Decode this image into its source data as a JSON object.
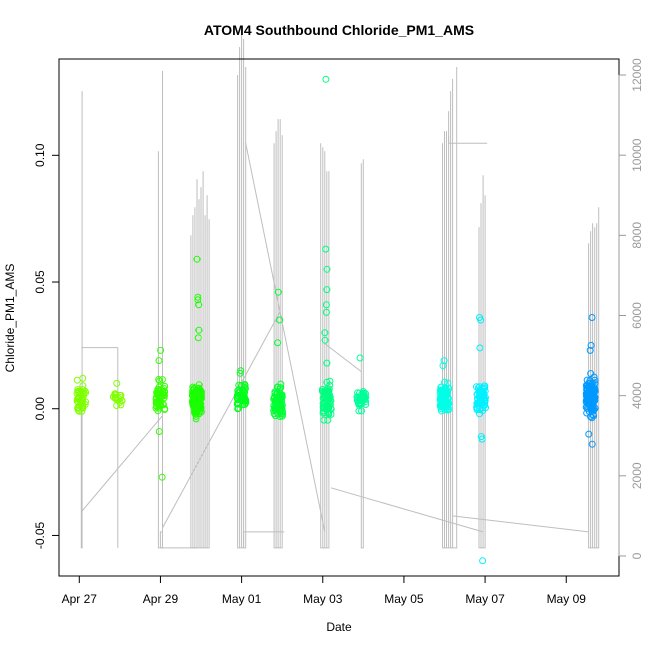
{
  "chart_data": {
    "type": "scatter",
    "title": "ATOM4 Southbound Chloride_PM1_AMS",
    "xlabel": "Date",
    "ylabel": "Chloride_PM1_AMS",
    "x_tick_labels": [
      "Apr 27",
      "Apr 29",
      "May 01",
      "May 03",
      "May 05",
      "May 07",
      "May 09"
    ],
    "x_tick_days": [
      0,
      2,
      4,
      6,
      8,
      10,
      12
    ],
    "x_range_days": [
      -0.5,
      13.3
    ],
    "y_ticks": [
      -0.05,
      0.0,
      0.05,
      0.1
    ],
    "y_tick_labels": [
      "-0.05",
      "0.00",
      "0.05",
      "0.10"
    ],
    "ylim": [
      -0.066,
      0.138
    ],
    "right_axis": {
      "ticks": [
        0,
        2000,
        4000,
        6000,
        8000,
        10000,
        12000
      ],
      "tick_labels": [
        "0",
        "2000",
        "4000",
        "6000",
        "8000",
        "10000",
        "12000"
      ],
      "range": [
        -500,
        12400
      ],
      "line_color": "#bebebe"
    },
    "grid": false,
    "legend": "none",
    "point_clusters": [
      {
        "day": 0.05,
        "color": "#7fff00",
        "center": 0.004,
        "spread": 0.005,
        "n": 45,
        "outliers": [
          0.012,
          -0.001
        ]
      },
      {
        "day": 0.95,
        "color": "#80ff00",
        "center": 0.004,
        "spread": 0.003,
        "n": 18,
        "outliers": [
          0.01
        ]
      },
      {
        "day": 2.0,
        "color": "#33ff00",
        "center": 0.005,
        "spread": 0.006,
        "n": 55,
        "outliers": [
          -0.027,
          0.023,
          0.019,
          -0.009
        ]
      },
      {
        "day": 2.9,
        "color": "#1aff00",
        "center": 0.003,
        "spread": 0.005,
        "n": 140,
        "outliers": [
          0.059,
          0.044,
          0.041,
          0.043,
          0.031,
          0.028,
          -0.004
        ]
      },
      {
        "day": 4.0,
        "color": "#00ff19",
        "center": 0.004,
        "spread": 0.004,
        "n": 45,
        "outliers": [
          0.015,
          0.014
        ]
      },
      {
        "day": 4.9,
        "color": "#00ff33",
        "center": 0.003,
        "spread": 0.005,
        "n": 80,
        "outliers": [
          0.046,
          0.035,
          0.026
        ]
      },
      {
        "day": 6.1,
        "color": "#00ff80",
        "center": 0.003,
        "spread": 0.006,
        "n": 70,
        "outliers": [
          0.13,
          0.063,
          0.055,
          0.047,
          0.041,
          0.038,
          0.03,
          0.027,
          0.018
        ]
      },
      {
        "day": 6.95,
        "color": "#00ff99",
        "center": 0.004,
        "spread": 0.004,
        "n": 45,
        "outliers": [
          0.02
        ]
      },
      {
        "day": 9.0,
        "color": "#00ffe6",
        "center": 0.004,
        "spread": 0.005,
        "n": 100,
        "outliers": [
          0.019,
          0.017
        ]
      },
      {
        "day": 9.9,
        "color": "#00f0ff",
        "center": 0.004,
        "spread": 0.006,
        "n": 70,
        "outliers": [
          0.036,
          0.035,
          0.024,
          -0.06,
          -0.012,
          -0.011
        ]
      },
      {
        "day": 12.6,
        "color": "#0099ff",
        "center": 0.004,
        "spread": 0.007,
        "n": 110,
        "outliers": [
          0.036,
          0.025,
          0.023,
          -0.014,
          -0.01
        ]
      }
    ],
    "gray_spike_groups": [
      {
        "x": [
          0.05,
          0.07
        ],
        "top": [
          4000,
          11600
        ]
      },
      {
        "x": [
          1.95,
          2.05
        ],
        "top": [
          10100,
          12100
        ]
      },
      {
        "x": [
          2.75,
          2.8,
          2.85,
          2.9,
          2.95,
          3.0,
          3.05,
          3.1,
          3.15,
          3.2
        ],
        "top": [
          8000,
          8500,
          8700,
          9400,
          8900,
          9200,
          9600,
          8500,
          9000,
          8400
        ]
      },
      {
        "x": [
          3.9,
          3.95,
          4.0,
          4.05,
          4.1
        ],
        "top": [
          12000,
          12700,
          13000,
          12900,
          12200
        ]
      },
      {
        "x": [
          4.8,
          4.85,
          4.9,
          4.95,
          5.0
        ],
        "top": [
          10300,
          10600,
          10900,
          10900,
          10500
        ]
      },
      {
        "x": [
          5.95,
          6.0,
          6.05,
          6.1,
          6.15
        ],
        "top": [
          10300,
          10200,
          10100,
          9600,
          9600
        ]
      },
      {
        "x": [
          6.95,
          7.0
        ],
        "top": [
          9800,
          9900
        ]
      },
      {
        "x": [
          8.95,
          9.0,
          9.05,
          9.1,
          9.15,
          9.2,
          9.3
        ],
        "top": [
          10300,
          10600,
          10600,
          11100,
          11600,
          11900,
          12200
        ]
      },
      {
        "x": [
          9.85,
          9.9,
          9.95,
          10.0
        ],
        "top": [
          8200,
          8800,
          9500,
          9000
        ]
      },
      {
        "x": [
          12.55,
          12.6,
          12.65,
          12.7,
          12.75,
          12.8
        ],
        "top": [
          7800,
          8100,
          8300,
          8200,
          8300,
          8700
        ]
      }
    ],
    "gray_connectors": [
      {
        "x": [
          0.05,
          0.95,
          0.95
        ],
        "y": [
          5200,
          5200,
          200
        ]
      },
      {
        "x": [
          0.05,
          2.05
        ],
        "y": [
          1100,
          3500
        ]
      },
      {
        "x": [
          2.05,
          2.0,
          2.0,
          2.9
        ],
        "y": [
          600,
          600,
          200,
          200
        ]
      },
      {
        "x": [
          2.05,
          4.95
        ],
        "y": [
          700,
          6100
        ]
      },
      {
        "x": [
          4.05,
          4.05,
          5.05
        ],
        "y": [
          200,
          600,
          600
        ]
      },
      {
        "x": [
          4.1,
          6.05
        ],
        "y": [
          10300,
          600
        ]
      },
      {
        "x": [
          6.05,
          6.95
        ],
        "y": [
          5300,
          4600
        ]
      },
      {
        "x": [
          6.2,
          9.95
        ],
        "y": [
          1700,
          600
        ]
      },
      {
        "x": [
          9.1,
          9.1,
          10.05
        ],
        "y": [
          10500,
          10300,
          10300
        ]
      },
      {
        "x": [
          9.2,
          12.55
        ],
        "y": [
          1000,
          600
        ]
      }
    ]
  }
}
